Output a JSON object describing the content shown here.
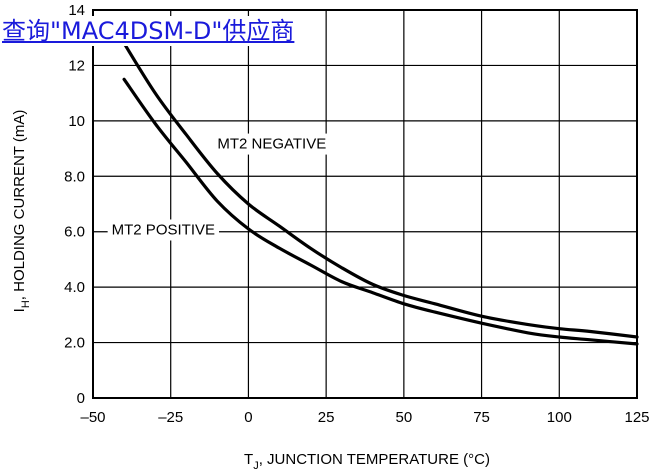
{
  "overlay_link": "查询\"MAC4DSM-D\"供应商",
  "chart_data": {
    "type": "line",
    "xlabel_main": "T",
    "xlabel_sub": "J",
    "xlabel_rest": ", JUNCTION TEMPERATURE (°C)",
    "ylabel_main": "I",
    "ylabel_sub": "H",
    "ylabel_rest": ", HOLDING CURRENT (mA)",
    "xlim": [
      -50,
      125
    ],
    "ylim": [
      0,
      14
    ],
    "x_ticks": [
      {
        "value": -50,
        "label": "–50"
      },
      {
        "value": -25,
        "label": "–25"
      },
      {
        "value": 0,
        "label": "0"
      },
      {
        "value": 25,
        "label": "25"
      },
      {
        "value": 50,
        "label": "50"
      },
      {
        "value": 75,
        "label": "75"
      },
      {
        "value": 100,
        "label": "100"
      },
      {
        "value": 125,
        "label": "125"
      }
    ],
    "y_ticks": [
      {
        "value": 0,
        "label": "0"
      },
      {
        "value": 2,
        "label": "2.0"
      },
      {
        "value": 4,
        "label": "4.0"
      },
      {
        "value": 6,
        "label": "6.0"
      },
      {
        "value": 8,
        "label": "8.0"
      },
      {
        "value": 10,
        "label": "10"
      },
      {
        "value": 12,
        "label": "12"
      },
      {
        "value": 14,
        "label": "14"
      }
    ],
    "grid": true,
    "series": [
      {
        "name": "MT2 NEGATIVE",
        "x": [
          -40,
          -30,
          -20,
          -10,
          0,
          10,
          20,
          30,
          40,
          50,
          60,
          75,
          90,
          100,
          110,
          125
        ],
        "y": [
          12.8,
          11.0,
          9.5,
          8.1,
          7.0,
          6.2,
          5.4,
          4.7,
          4.1,
          3.7,
          3.4,
          2.95,
          2.65,
          2.5,
          2.4,
          2.2
        ]
      },
      {
        "name": "MT2 POSITIVE",
        "x": [
          -40,
          -30,
          -20,
          -10,
          0,
          10,
          20,
          30,
          40,
          50,
          60,
          75,
          90,
          100,
          110,
          125
        ],
        "y": [
          11.5,
          9.9,
          8.5,
          7.1,
          6.1,
          5.4,
          4.8,
          4.2,
          3.8,
          3.4,
          3.1,
          2.7,
          2.35,
          2.2,
          2.1,
          1.95
        ]
      }
    ],
    "annotations": [
      {
        "text": "MT2 NEGATIVE",
        "x": -10,
        "y": 9.0
      },
      {
        "text": "MT2 POSITIVE",
        "x": -44,
        "y": 5.9
      }
    ]
  }
}
